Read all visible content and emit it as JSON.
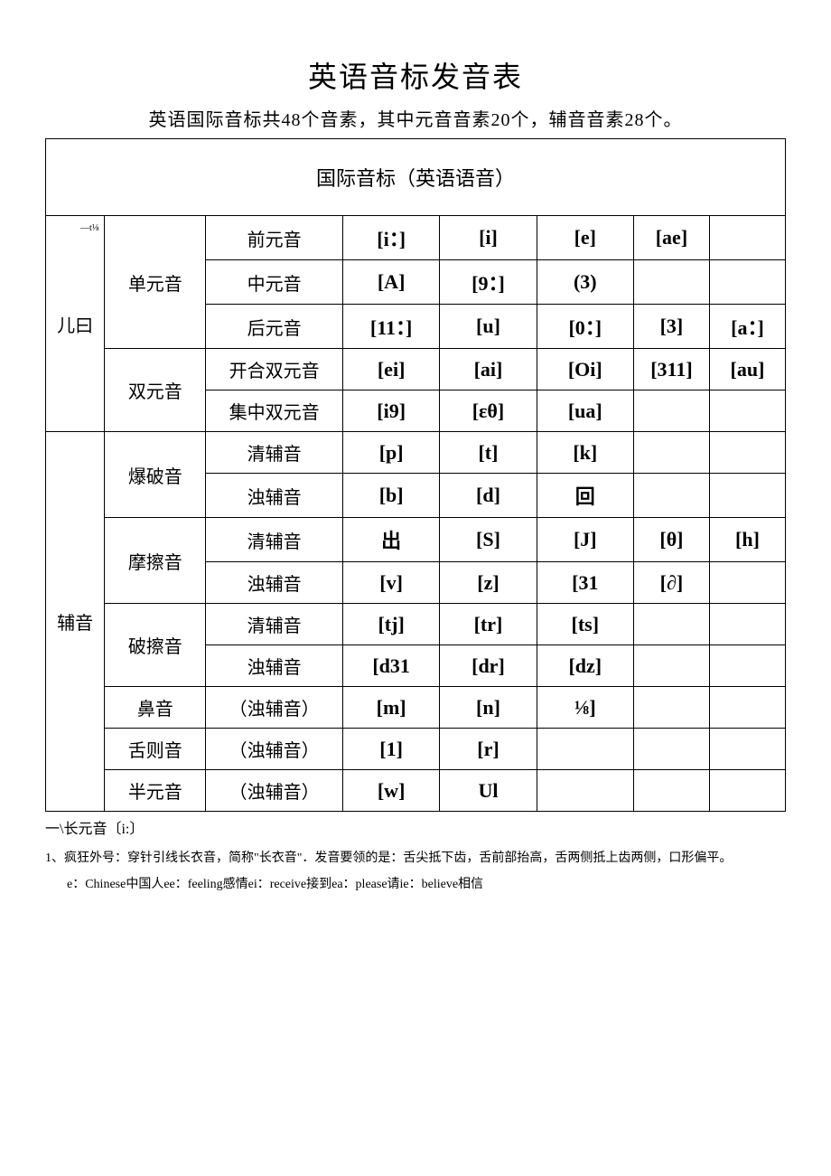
{
  "title": "英语音标发音表",
  "subtitle": "英语国际音标共48个音素，其中元音音素20个，辅音音素28个。",
  "table_header": "国际音标（英语语音）",
  "categories": {
    "vowel": {
      "label": "儿曰",
      "sup": "—t⅛",
      "groups": [
        {
          "label": "单元音",
          "rows": [
            {
              "type": "前元音",
              "cells": [
                "[i：]",
                "[i]",
                "[e]",
                "[ae]",
                ""
              ]
            },
            {
              "type": "中元音",
              "cells": [
                "[A]",
                "[9：]",
                "(3)",
                "",
                ""
              ]
            },
            {
              "type": "后元音",
              "cells": [
                "[11：]",
                "[u]",
                "[0：]",
                "[3]",
                "[a：]"
              ]
            }
          ]
        },
        {
          "label": "双元音",
          "rows": [
            {
              "type": "开合双元音",
              "cells": [
                "[ei]",
                "[ai]",
                "[Oi]",
                "[311]",
                "[au]"
              ]
            },
            {
              "type": "集中双元音",
              "cells": [
                "[i9]",
                "[εθ]",
                "[ua]",
                "",
                ""
              ]
            }
          ]
        }
      ]
    },
    "consonant": {
      "label": "辅音",
      "groups": [
        {
          "label": "爆破音",
          "rows": [
            {
              "type": "清辅音",
              "cells": [
                "[p]",
                "[t]",
                "[k]",
                "",
                ""
              ]
            },
            {
              "type": "浊辅音",
              "cells": [
                "[b]",
                "[d]",
                "回",
                "",
                ""
              ]
            }
          ]
        },
        {
          "label": "摩擦音",
          "rows": [
            {
              "type": "清辅音",
              "cells": [
                "出",
                "[S]",
                "[J]",
                "[θ]",
                "[h]"
              ]
            },
            {
              "type": "浊辅音",
              "cells": [
                "[v]",
                "[z]",
                "[31",
                "[∂]",
                ""
              ]
            }
          ]
        },
        {
          "label": "破擦音",
          "rows": [
            {
              "type": "清辅音",
              "cells": [
                "[tj]",
                "[tr]",
                "[ts]",
                "",
                ""
              ]
            },
            {
              "type": "浊辅音",
              "cells": [
                "[d31",
                "[dr]",
                "[dz]",
                "",
                ""
              ]
            }
          ]
        },
        {
          "label": "鼻音",
          "rows": [
            {
              "type": "（浊辅音）",
              "cells": [
                "[m]",
                "[n]",
                "⅛]",
                "",
                ""
              ]
            }
          ]
        },
        {
          "label": "舌则音",
          "rows": [
            {
              "type": "（浊辅音）",
              "cells": [
                "[1]",
                "[r]",
                "",
                "",
                ""
              ]
            }
          ]
        },
        {
          "label": "半元音",
          "rows": [
            {
              "type": "（浊辅音）",
              "cells": [
                "[w]",
                "Ul",
                "",
                "",
                ""
              ]
            }
          ]
        }
      ]
    }
  },
  "footer": {
    "heading": "一\\长元音〔i:〕",
    "note": "1、疯狂外号：穿针引线长衣音，简称\"长衣音\"．发音要领的是：舌尖抵下齿，舌前部抬高，舌两侧抵上齿两侧，口形偏平。",
    "examples": "e：Chinese中国人ee：feeling感情ei：receive接到ea：please请ie：believe相信"
  },
  "style": {
    "background_color": "#ffffff",
    "border_color": "#000000",
    "title_fontsize": 32,
    "subtitle_fontsize": 20,
    "cell_fontsize": 20,
    "phonetic_fontsize": 22,
    "phonetic_font": "Times New Roman",
    "body_font": "SimSun",
    "footer_fontsize": 14
  }
}
